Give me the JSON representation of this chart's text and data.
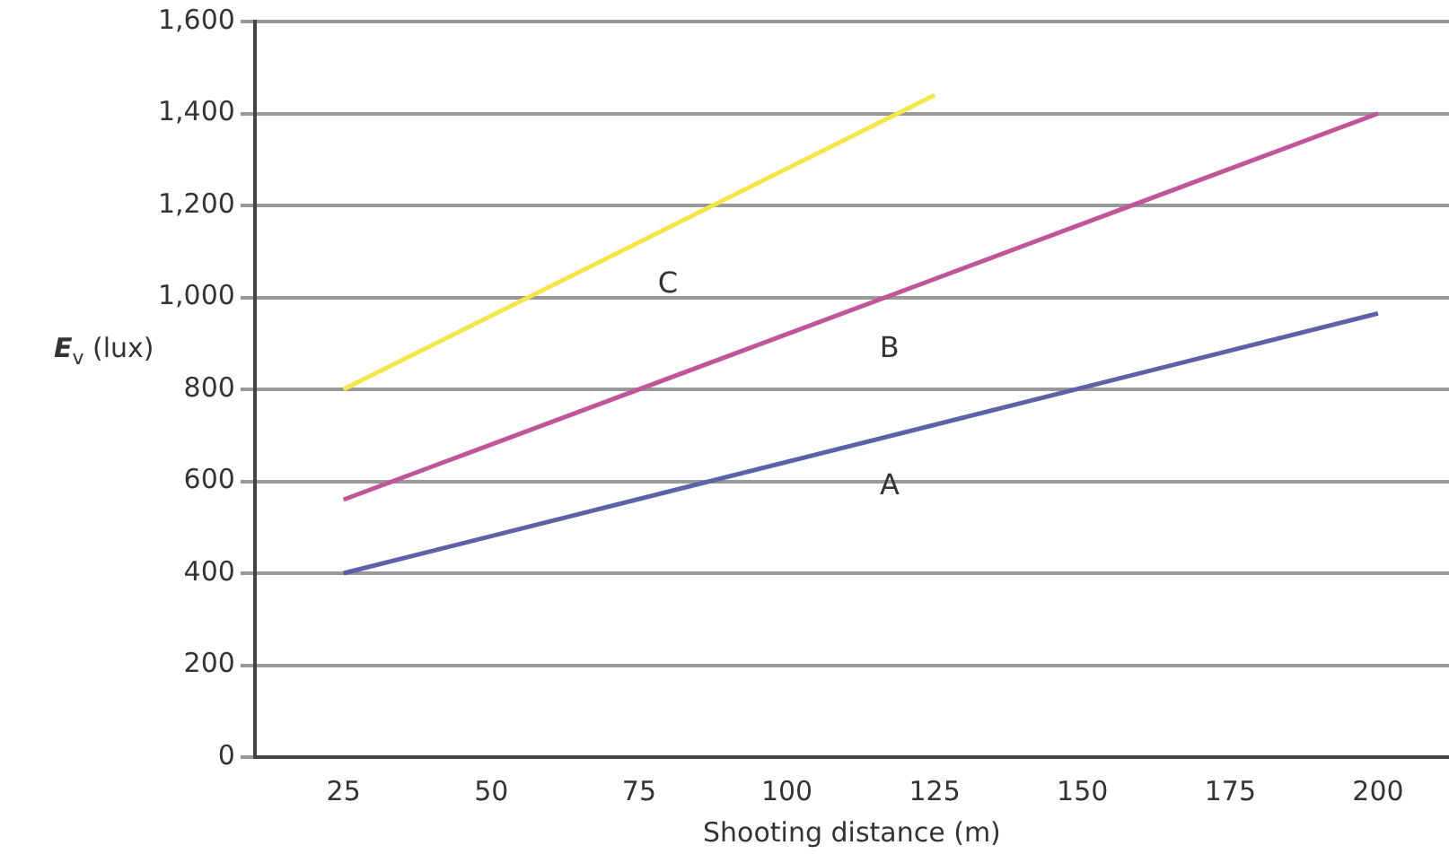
{
  "chart_data": {
    "type": "line",
    "xlabel": "Shooting distance (m)",
    "ylabel": "E$_{v}$ (lux)",
    "xlim": [
      10,
      212
    ],
    "xticks": [
      25,
      50,
      75,
      100,
      125,
      150,
      175,
      200
    ],
    "ylim": [
      0,
      1600
    ],
    "yticks": [
      0,
      200,
      400,
      600,
      800,
      {
        "value": 1000,
        "label": "1,000"
      },
      {
        "value": 1200,
        "label": "1,200"
      },
      {
        "value": 1400,
        "label": "1,400"
      },
      {
        "value": 1600,
        "label": "1,600"
      }
    ],
    "grid": "y",
    "legend": false,
    "marker": "none",
    "line_style": "solid",
    "series": [
      {
        "name": "A",
        "color": "#5b62a8",
        "x": [
          25,
          200
        ],
        "values": [
          400,
          965
        ]
      },
      {
        "name": "B",
        "color": "#c0559a",
        "x": [
          25,
          200
        ],
        "values": [
          560,
          1400
        ]
      },
      {
        "name": "C",
        "color": "#f4e64a",
        "x": [
          25,
          125
        ],
        "values": [
          800,
          1440
        ]
      }
    ]
  }
}
